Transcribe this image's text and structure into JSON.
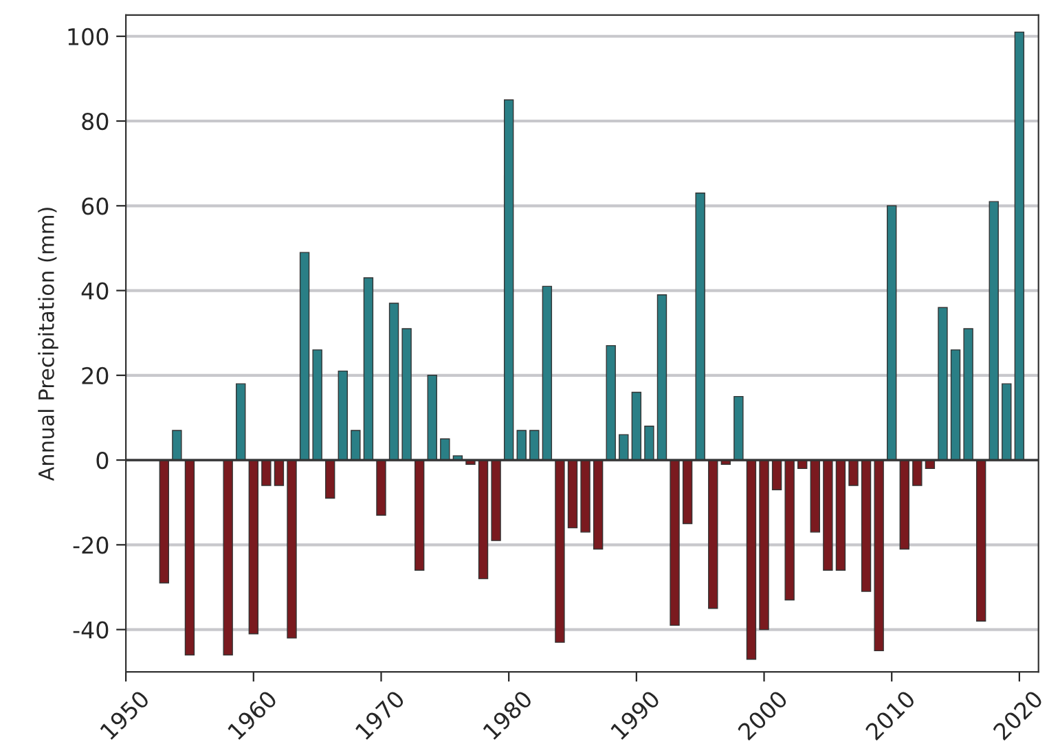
{
  "chart_data": {
    "type": "bar",
    "ylabel": "Annual Precipitation (mm)",
    "x": [
      1953,
      1954,
      1955,
      1956,
      1957,
      1958,
      1959,
      1960,
      1961,
      1962,
      1963,
      1964,
      1965,
      1966,
      1967,
      1968,
      1969,
      1970,
      1971,
      1972,
      1973,
      1974,
      1975,
      1976,
      1977,
      1978,
      1979,
      1980,
      1981,
      1982,
      1983,
      1984,
      1985,
      1986,
      1987,
      1988,
      1989,
      1990,
      1991,
      1992,
      1993,
      1994,
      1995,
      1996,
      1997,
      1998,
      1999,
      2000,
      2001,
      2002,
      2003,
      2004,
      2005,
      2006,
      2007,
      2008,
      2009,
      2010,
      2011,
      2012,
      2013,
      2014,
      2015,
      2016,
      2017,
      2018,
      2019,
      2020
    ],
    "values": [
      -29,
      7,
      -46,
      null,
      null,
      -46,
      18,
      -41,
      -6,
      -6,
      -42,
      49,
      26,
      -9,
      21,
      7,
      43,
      -13,
      37,
      31,
      -26,
      20,
      5,
      1,
      -1,
      -28,
      -19,
      85,
      7,
      7,
      41,
      -43,
      -16,
      -17,
      -21,
      27,
      6,
      16,
      8,
      39,
      -39,
      -15,
      63,
      -35,
      -1,
      15,
      -47,
      -40,
      -7,
      -33,
      -2,
      -17,
      -26,
      -26,
      -6,
      -31,
      -45,
      60,
      -21,
      -6,
      -2,
      36,
      26,
      31,
      -38,
      61,
      18,
      101
    ],
    "colors": [
      "#7a1a1f",
      "#2a7f86",
      "#7a1a1f",
      "#7a1a1f",
      "#7a1a1f",
      "#7a1a1f",
      "#2a7f86",
      "#7a1a1f",
      "#7a1a1f",
      "#7a1a1f",
      "#7a1a1f",
      "#2a7f86",
      "#2a7f86",
      "#7a1a1f",
      "#2a7f86",
      "#2a7f86",
      "#2a7f86",
      "#7a1a1f",
      "#2a7f86",
      "#2a7f86",
      "#7a1a1f",
      "#2a7f86",
      "#2a7f86",
      "#2a7f86",
      "#7a1a1f",
      "#7a1a1f",
      "#7a1a1f",
      "#2a7f86",
      "#2a7f86",
      "#2a7f86",
      "#2a7f86",
      "#7a1a1f",
      "#7a1a1f",
      "#7a1a1f",
      "#7a1a1f",
      "#2a7f86",
      "#2a7f86",
      "#2a7f86",
      "#2a7f86",
      "#2a7f86",
      "#7a1a1f",
      "#7a1a1f",
      "#2a7f86",
      "#7a1a1f",
      "#7a1a1f",
      "#2a7f86",
      "#7a1a1f",
      "#7a1a1f",
      "#7a1a1f",
      "#7a1a1f",
      "#7a1a1f",
      "#7a1a1f",
      "#7a1a1f",
      "#7a1a1f",
      "#7a1a1f",
      "#7a1a1f",
      "#7a1a1f",
      "#2a7f86",
      "#7a1a1f",
      "#7a1a1f",
      "#7a1a1f",
      "#2a7f86",
      "#2a7f86",
      "#2a7f86",
      "#7a1a1f",
      "#2a7f86",
      "#2a7f86",
      "#2a7f86"
    ],
    "xlim": [
      1950,
      2021.5
    ],
    "xticks": [
      1950,
      1960,
      1970,
      1980,
      1990,
      2000,
      2010,
      2020
    ],
    "ylim": [
      -50,
      105
    ],
    "yticks": [
      -40,
      -20,
      0,
      20,
      40,
      60,
      80,
      100
    ],
    "grid": "y",
    "ref_lines": [
      {
        "axis": "y",
        "value": 0,
        "color": "#333333"
      }
    ]
  }
}
